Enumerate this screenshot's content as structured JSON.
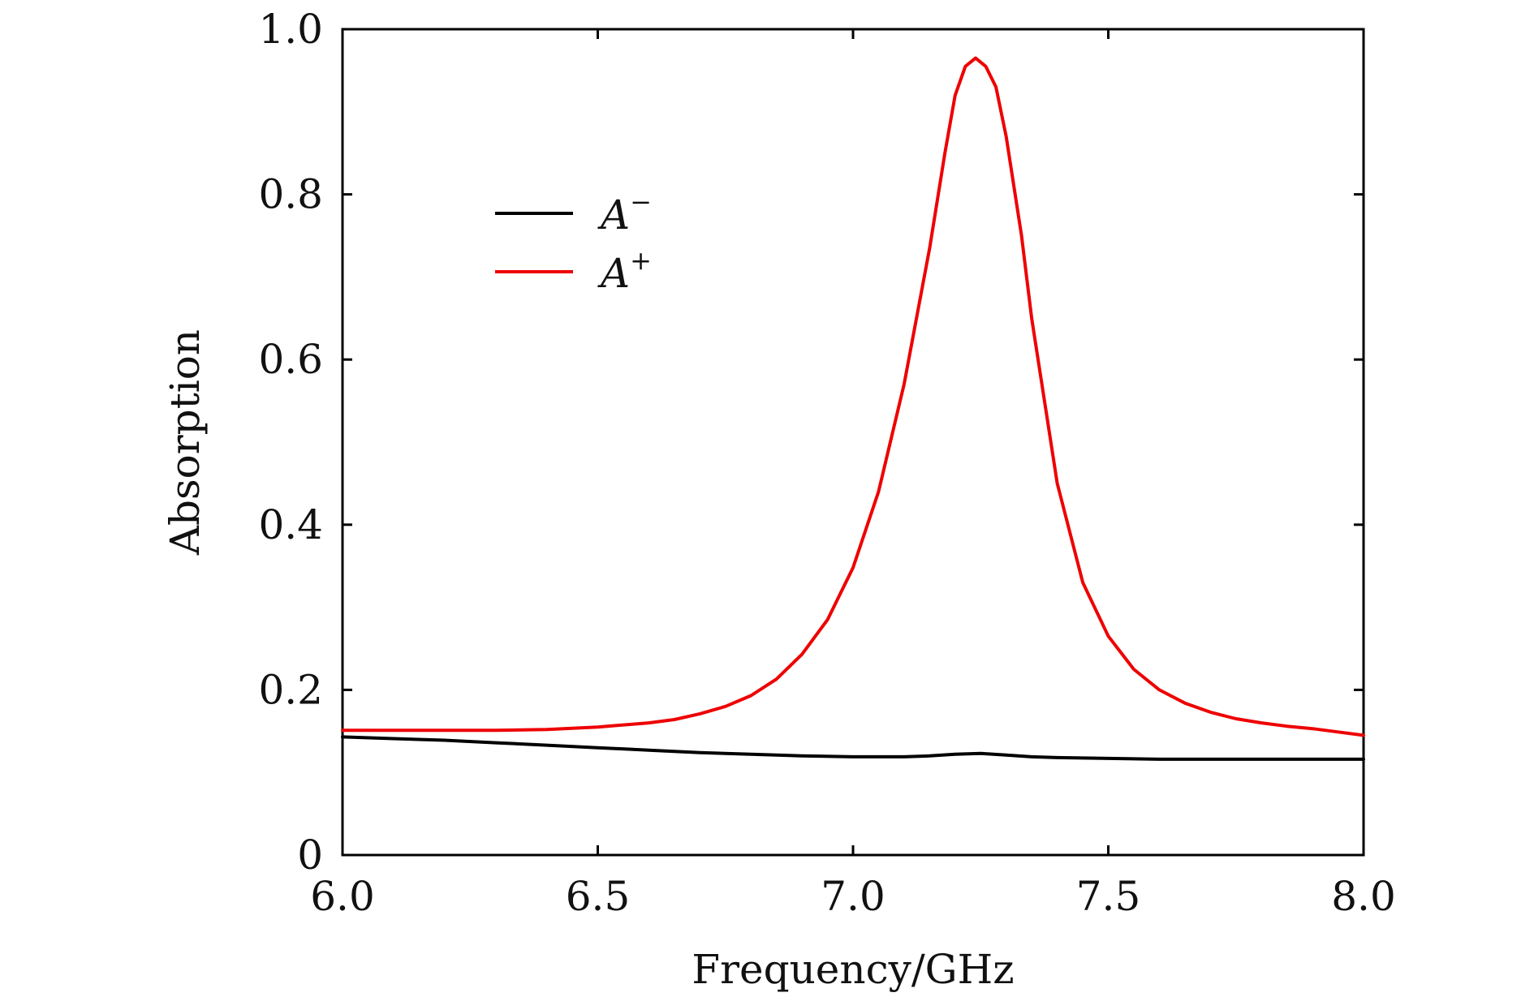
{
  "chart_data": {
    "type": "line",
    "title": "",
    "xlabel": "Frequency/GHz",
    "ylabel": "Absorption",
    "xlim": [
      6.0,
      8.0
    ],
    "ylim": [
      0.0,
      1.0
    ],
    "grid": false,
    "legend_position": "upper-left",
    "x_ticks": [
      6.0,
      6.5,
      7.0,
      7.5,
      8.0
    ],
    "x_tick_labels": [
      "6.0",
      "6.5",
      "7.0",
      "7.5",
      "8.0"
    ],
    "y_ticks": [
      0.0,
      0.2,
      0.4,
      0.6,
      0.8,
      1.0
    ],
    "y_tick_labels": [
      "0",
      "0.2",
      "0.4",
      "0.6",
      "0.8",
      "1.0"
    ],
    "series": [
      {
        "name": "A",
        "legend_base": "A",
        "legend_sup": "−",
        "color": "#000000",
        "x": [
          6.0,
          6.1,
          6.2,
          6.3,
          6.4,
          6.5,
          6.6,
          6.7,
          6.8,
          6.9,
          7.0,
          7.1,
          7.15,
          7.2,
          7.25,
          7.3,
          7.35,
          7.4,
          7.5,
          7.6,
          7.7,
          7.8,
          7.9,
          8.0
        ],
        "y": [
          0.143,
          0.141,
          0.139,
          0.136,
          0.133,
          0.13,
          0.127,
          0.124,
          0.122,
          0.12,
          0.119,
          0.119,
          0.12,
          0.122,
          0.123,
          0.121,
          0.119,
          0.118,
          0.117,
          0.116,
          0.116,
          0.116,
          0.116,
          0.116
        ]
      },
      {
        "name": "A+",
        "legend_base": "A",
        "legend_sup": "+",
        "color": "#ee0000",
        "x": [
          6.0,
          6.1,
          6.2,
          6.3,
          6.4,
          6.5,
          6.6,
          6.65,
          6.7,
          6.75,
          6.8,
          6.85,
          6.9,
          6.95,
          7.0,
          7.05,
          7.1,
          7.15,
          7.18,
          7.2,
          7.22,
          7.24,
          7.26,
          7.28,
          7.3,
          7.33,
          7.35,
          7.4,
          7.45,
          7.5,
          7.55,
          7.6,
          7.65,
          7.7,
          7.75,
          7.8,
          7.85,
          7.9,
          7.95,
          8.0
        ],
        "y": [
          0.151,
          0.151,
          0.151,
          0.151,
          0.152,
          0.155,
          0.16,
          0.164,
          0.171,
          0.18,
          0.193,
          0.213,
          0.243,
          0.285,
          0.348,
          0.44,
          0.57,
          0.735,
          0.85,
          0.92,
          0.955,
          0.965,
          0.955,
          0.93,
          0.87,
          0.75,
          0.65,
          0.45,
          0.33,
          0.265,
          0.225,
          0.2,
          0.184,
          0.173,
          0.165,
          0.16,
          0.156,
          0.153,
          0.149,
          0.145
        ]
      }
    ]
  }
}
